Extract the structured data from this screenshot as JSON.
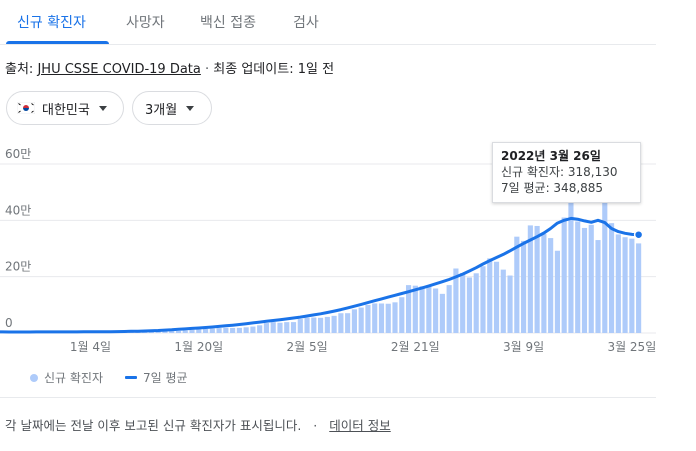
{
  "tabs": [
    {
      "label": "신규 확진자",
      "active": true
    },
    {
      "label": "사망자",
      "active": false
    },
    {
      "label": "백신 접종",
      "active": false
    },
    {
      "label": "검사",
      "active": false
    }
  ],
  "source": {
    "prefix": "출처:",
    "link": "JHU CSSE COVID-19 Data",
    "separator": "·",
    "updated": "최종 업데이트: 1일 전"
  },
  "filters": {
    "region": "대한민국",
    "region_flag_icon": "south-korea-flag-icon",
    "period": "3개월"
  },
  "tooltip": {
    "date": "2022년 3월 26일",
    "new_cases": "신규 확진자: 318,130",
    "avg": "7일 평균: 348,885"
  },
  "legend": {
    "bars": "신규 확진자",
    "line": "7일 평균"
  },
  "footer": {
    "note": "각 날짜에는 전날 이후 보고된 신규 확진자가 표시됩니다.",
    "separator": "·",
    "link": "데이터 정보"
  },
  "colors": {
    "accent": "#1a73e8",
    "bar": "#aecbfa",
    "grid": "#e8eaed",
    "text_muted": "#70757a"
  },
  "chart_data": {
    "type": "bar",
    "title": "",
    "xlabel": "",
    "ylabel": "",
    "ylim": [
      0,
      600000
    ],
    "y_ticks": [
      {
        "value": 0,
        "label": "0"
      },
      {
        "value": 200000,
        "label": "20만"
      },
      {
        "value": 400000,
        "label": "40만"
      },
      {
        "value": 600000,
        "label": "60만"
      }
    ],
    "x_start": "2021-12-27",
    "x_end": "2022-03-26",
    "x_ticks": [
      {
        "date": "2022-01-04",
        "label": "1월 4일"
      },
      {
        "date": "2022-01-20",
        "label": "1월 20일"
      },
      {
        "date": "2022-02-05",
        "label": "2월 5일"
      },
      {
        "date": "2022-02-21",
        "label": "2월 21일"
      },
      {
        "date": "2022-03-09",
        "label": "3월 9일"
      },
      {
        "date": "2022-03-25",
        "label": "3월 25일"
      }
    ],
    "grid": true,
    "series": [
      {
        "name": "신규 확진자",
        "kind": "bar",
        "values": [
          3800,
          4200,
          4500,
          4400,
          4300,
          4000,
          3900,
          3400,
          3200,
          3100,
          3000,
          3700,
          4100,
          4400,
          4300,
          4200,
          3900,
          3800,
          3900,
          4200,
          4100,
          3600,
          3700,
          4100,
          4700,
          5300,
          5800,
          6800,
          7000,
          6900,
          7500,
          9000,
          11500,
          13000,
          14500,
          15600,
          17500,
          18300,
          17900,
          18200,
          20200,
          22900,
          27400,
          35300,
          38700,
          36400,
          38600,
          38700,
          49500,
          54100,
          54900,
          53900,
          57100,
          60900,
          70200,
          70300,
          84000,
          90300,
          99600,
          105000,
          104800,
          103900,
          108900,
          127000,
          170000,
          168000,
          166000,
          165000,
          158000,
          139000,
          170000,
          229000,
          213000,
          197000,
          212000,
          237000,
          265000,
          253000,
          225000,
          204000,
          342000,
          327000,
          382000,
          380000,
          352000,
          337000,
          292000,
          410000,
          470000,
          396000,
          373000,
          384000,
          330000,
          469000,
          390000,
          350000,
          340000,
          335000,
          318130
        ],
        "x_end": "2022-03-26"
      },
      {
        "name": "7일 평균",
        "kind": "line",
        "values": [
          4100,
          4100,
          4000,
          3900,
          3800,
          3700,
          3700,
          3700,
          3700,
          3800,
          3900,
          3900,
          4000,
          4000,
          4000,
          4000,
          4100,
          4200,
          4300,
          4500,
          4700,
          5000,
          5400,
          5900,
          6500,
          7200,
          8000,
          9000,
          10200,
          11500,
          13000,
          14600,
          16200,
          17900,
          19600,
          21400,
          23300,
          25400,
          27700,
          30300,
          33000,
          35800,
          38600,
          41400,
          44300,
          47200,
          50200,
          53300,
          56600,
          60200,
          64100,
          68200,
          72800,
          77800,
          83200,
          89000,
          95100,
          101400,
          108000,
          114600,
          121000,
          127300,
          133800,
          140200,
          146700,
          153300,
          160100,
          167200,
          174500,
          182000,
          190000,
          199000,
          209000,
          220000,
          232000,
          245000,
          257000,
          268000,
          279000,
          292000,
          305000,
          318000,
          330000,
          342000,
          355000,
          371000,
          390000,
          400000,
          407000,
          404000,
          398000,
          393000,
          400000,
          392000,
          371000,
          360000,
          354000,
          350000,
          348885
        ],
        "x_end": "2022-03-26"
      }
    ]
  }
}
